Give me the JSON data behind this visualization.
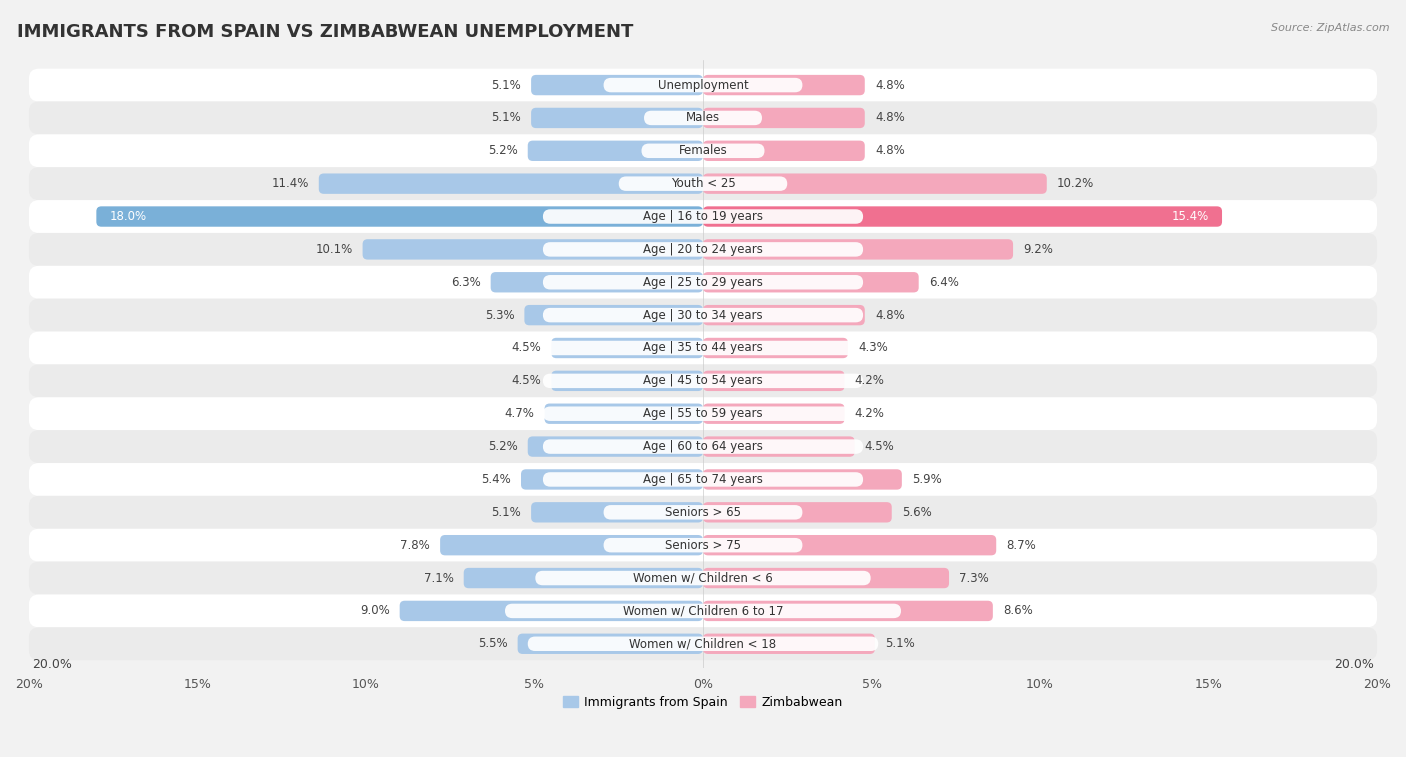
{
  "title": "IMMIGRANTS FROM SPAIN VS ZIMBABWEAN UNEMPLOYMENT",
  "source": "Source: ZipAtlas.com",
  "categories": [
    "Unemployment",
    "Males",
    "Females",
    "Youth < 25",
    "Age | 16 to 19 years",
    "Age | 20 to 24 years",
    "Age | 25 to 29 years",
    "Age | 30 to 34 years",
    "Age | 35 to 44 years",
    "Age | 45 to 54 years",
    "Age | 55 to 59 years",
    "Age | 60 to 64 years",
    "Age | 65 to 74 years",
    "Seniors > 65",
    "Seniors > 75",
    "Women w/ Children < 6",
    "Women w/ Children 6 to 17",
    "Women w/ Children < 18"
  ],
  "spain_values": [
    5.1,
    5.1,
    5.2,
    11.4,
    18.0,
    10.1,
    6.3,
    5.3,
    4.5,
    4.5,
    4.7,
    5.2,
    5.4,
    5.1,
    7.8,
    7.1,
    9.0,
    5.5
  ],
  "zimbabwe_values": [
    4.8,
    4.8,
    4.8,
    10.2,
    15.4,
    9.2,
    6.4,
    4.8,
    4.3,
    4.2,
    4.2,
    4.5,
    5.9,
    5.6,
    8.7,
    7.3,
    8.6,
    5.1
  ],
  "spain_color": "#a8c8e8",
  "zimbabwe_color": "#f4a8bc",
  "spain_label": "Immigrants from Spain",
  "zimbabwe_label": "Zimbabwean",
  "xlim": 20.0,
  "bg_color": "#f2f2f2",
  "row_color_even": "#ffffff",
  "row_color_odd": "#ebebeb",
  "highlight_row": 4,
  "highlight_spain_color": "#7ab0d8",
  "highlight_zimb_color": "#f07090",
  "title_fontsize": 13,
  "label_fontsize": 8.5,
  "value_fontsize": 8.5,
  "axis_fontsize": 9
}
